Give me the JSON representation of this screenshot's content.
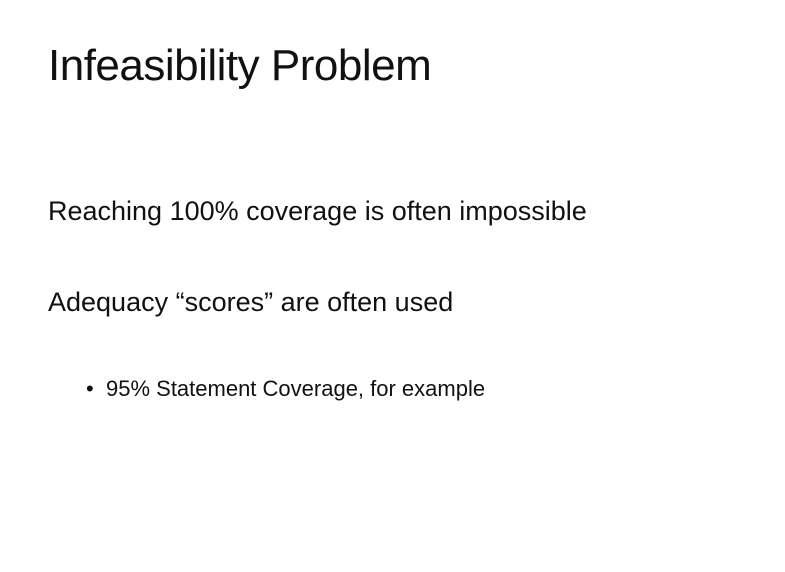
{
  "slide": {
    "title": "Infeasibility Problem",
    "points": [
      "Reaching 100% coverage is often impossible",
      "Adequacy “scores” are often used"
    ],
    "subpoints": [
      "95% Statement Coverage, for example"
    ],
    "bullet_glyph": "•"
  }
}
